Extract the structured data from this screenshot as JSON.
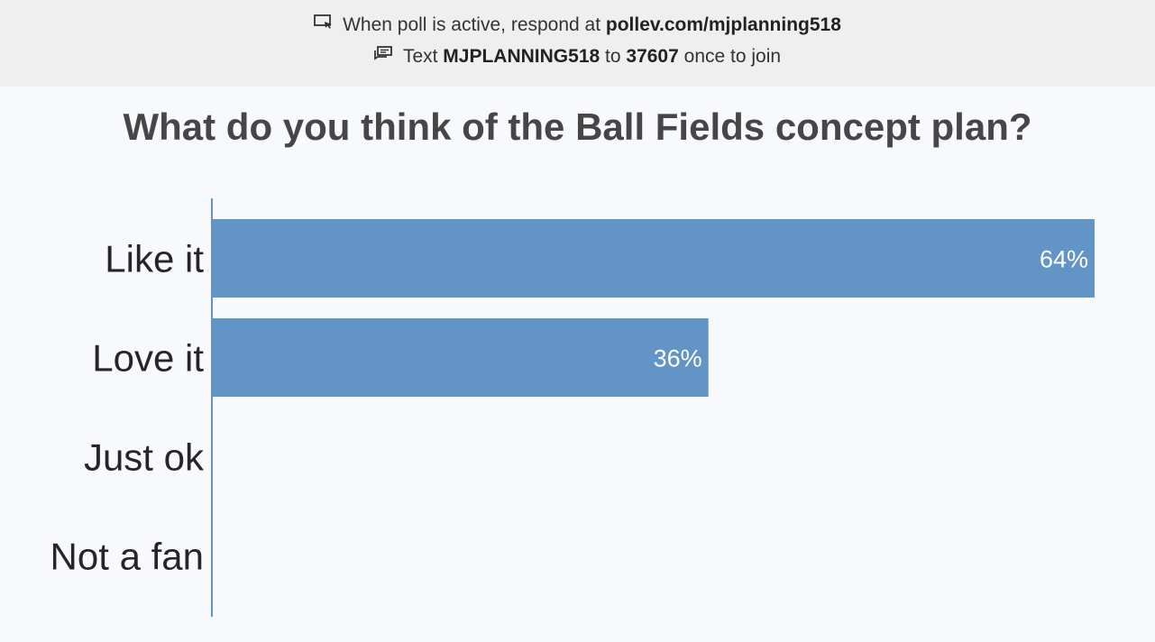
{
  "banner": {
    "line1_prefix": "When poll is active, respond at",
    "line1_url": "pollev.com/mjplanning518",
    "line2_text": "Text",
    "line2_keyword": "MJPLANNING518",
    "line2_to": "to",
    "line2_number": "37607",
    "line2_suffix": "once to join",
    "icons": [
      "screen-cursor-icon",
      "chat-bubble-icon"
    ]
  },
  "colors": {
    "bar": "#6294c6",
    "axis": "#6294c6",
    "background": "#f7f9fc",
    "banner_bg": "#efefef"
  },
  "chart_data": {
    "type": "bar",
    "orientation": "horizontal",
    "title": "What do you think of the Ball Fields concept plan?",
    "categories": [
      "Like it",
      "Love it",
      "Just ok",
      "Not a fan"
    ],
    "values": [
      64,
      36,
      0,
      0
    ],
    "value_labels": [
      "64%",
      "36%",
      "",
      ""
    ],
    "unit": "%",
    "xlim": [
      0,
      64
    ],
    "grid": false,
    "legend": "none"
  }
}
